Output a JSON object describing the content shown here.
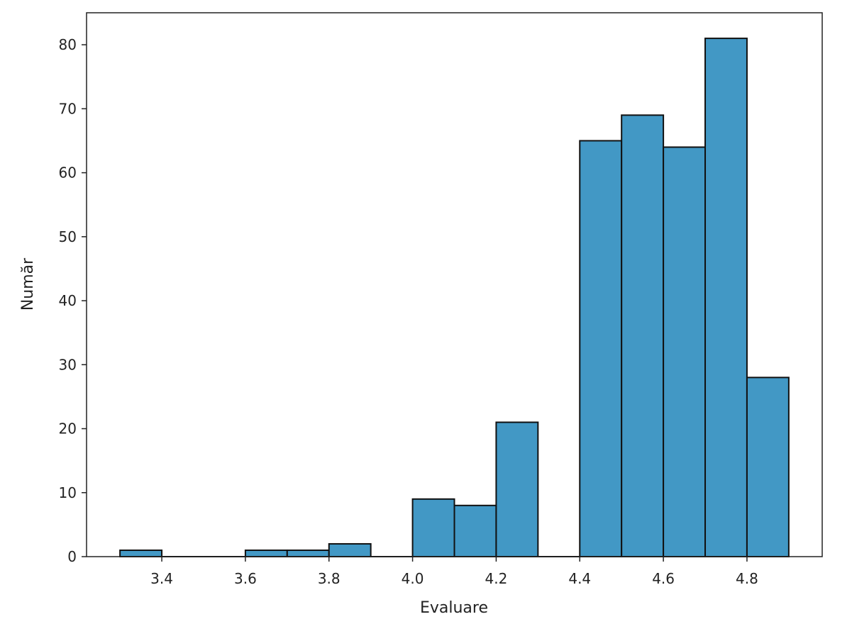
{
  "chart_data": {
    "type": "bar",
    "subtype": "histogram",
    "title": "",
    "xlabel": "Evaluare",
    "ylabel": "Număr",
    "bin_width": 0.1,
    "bins": [
      {
        "start": 3.3,
        "end": 3.4,
        "count": 1
      },
      {
        "start": 3.4,
        "end": 3.5,
        "count": 0
      },
      {
        "start": 3.5,
        "end": 3.6,
        "count": 0
      },
      {
        "start": 3.6,
        "end": 3.7,
        "count": 1
      },
      {
        "start": 3.7,
        "end": 3.8,
        "count": 1
      },
      {
        "start": 3.8,
        "end": 3.9,
        "count": 2
      },
      {
        "start": 3.9,
        "end": 4.0,
        "count": 0
      },
      {
        "start": 4.0,
        "end": 4.1,
        "count": 9
      },
      {
        "start": 4.1,
        "end": 4.2,
        "count": 8
      },
      {
        "start": 4.2,
        "end": 4.3,
        "count": 21
      },
      {
        "start": 4.3,
        "end": 4.4,
        "count": 0
      },
      {
        "start": 4.4,
        "end": 4.5,
        "count": 65
      },
      {
        "start": 4.5,
        "end": 4.6,
        "count": 69
      },
      {
        "start": 4.6,
        "end": 4.7,
        "count": 64
      },
      {
        "start": 4.7,
        "end": 4.8,
        "count": 81
      },
      {
        "start": 4.8,
        "end": 4.9,
        "count": 28
      }
    ],
    "xlim": [
      3.22,
      4.98
    ],
    "ylim": [
      0,
      85
    ],
    "xticks": [
      "3.4",
      "3.6",
      "3.8",
      "4.0",
      "4.2",
      "4.4",
      "4.6",
      "4.8"
    ],
    "yticks": [
      "0",
      "10",
      "20",
      "30",
      "40",
      "50",
      "60",
      "70",
      "80"
    ],
    "grid": false,
    "legend": "none",
    "bar_color": "#4298c5",
    "edge_color": "#111111"
  }
}
